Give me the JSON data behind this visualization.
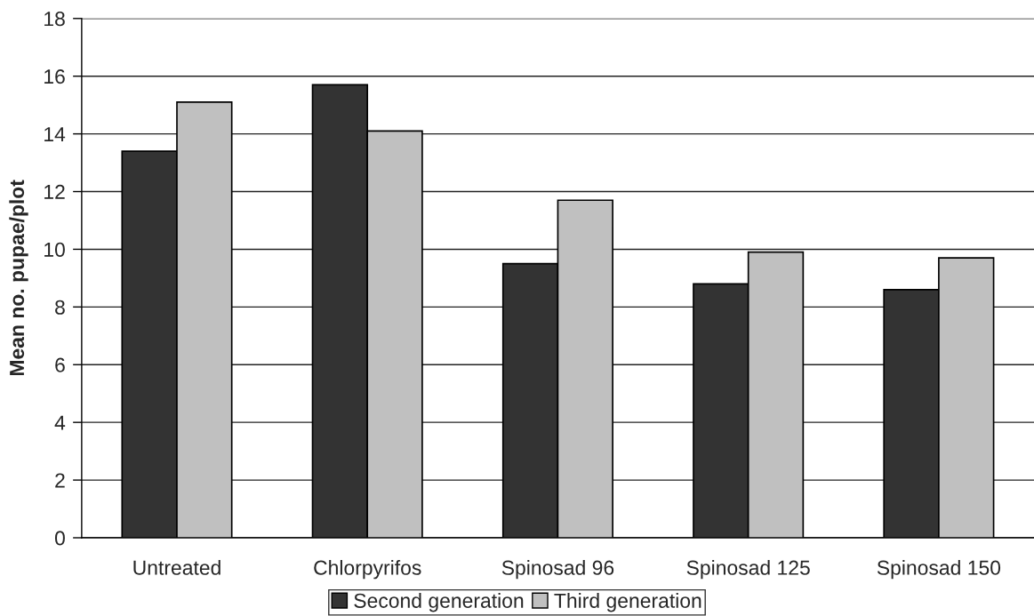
{
  "chart_data": {
    "type": "bar",
    "ylabel": "Mean no. pupae/plot",
    "categories": [
      "Untreated",
      "Chlorpyrifos",
      "Spinosad 96",
      "Spinosad 125",
      "Spinosad 150"
    ],
    "series": [
      {
        "name": "Second generation",
        "color": "#333333",
        "values": [
          13.4,
          15.7,
          9.5,
          8.8,
          8.6
        ]
      },
      {
        "name": "Third generation",
        "color": "#c0c0c0",
        "values": [
          15.1,
          14.1,
          11.7,
          9.9,
          9.7
        ]
      }
    ],
    "ylim": [
      0,
      18
    ],
    "yticks": [
      0,
      2,
      4,
      6,
      8,
      10,
      12,
      14,
      16,
      18
    ],
    "grid": "y",
    "legend": "bottom"
  }
}
